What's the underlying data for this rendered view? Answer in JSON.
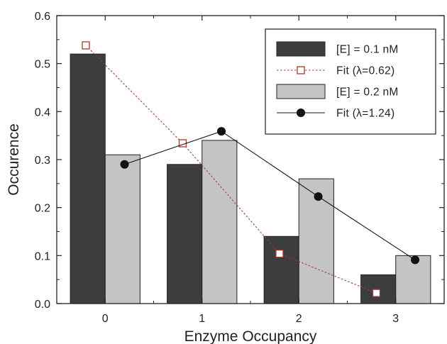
{
  "chart_data": {
    "type": "bar",
    "categories": [
      "0",
      "1",
      "2",
      "3"
    ],
    "xlabel": "Enzyme Occupancy",
    "ylabel": "Occurence",
    "ylim": [
      0.0,
      0.6
    ],
    "yticks": [
      "0.0",
      "0.1",
      "0.2",
      "0.3",
      "0.4",
      "0.5",
      "0.6"
    ],
    "grid": false,
    "legend_position": "top-right",
    "bar_series": [
      {
        "name": "[E] = 0.1 nM",
        "color": "#3d3d3d",
        "values": [
          0.52,
          0.29,
          0.14,
          0.06
        ]
      },
      {
        "name": "[E] = 0.2 nM",
        "color": "#c4c4c4",
        "values": [
          0.31,
          0.34,
          0.26,
          0.1
        ]
      }
    ],
    "line_series": [
      {
        "name": "Fit (λ=0.62)",
        "color": "#a33a2e",
        "style": "dotted",
        "marker": "open-square",
        "x": [
          -0.2,
          0.8,
          1.8,
          2.8
        ],
        "values": [
          0.538,
          0.334,
          0.104,
          0.022
        ]
      },
      {
        "name": "Fit (λ=1.24)",
        "color": "#111111",
        "style": "solid",
        "marker": "filled-circle",
        "x": [
          0.2,
          1.2,
          2.2,
          3.2
        ],
        "values": [
          0.29,
          0.359,
          0.223,
          0.091
        ]
      }
    ]
  }
}
